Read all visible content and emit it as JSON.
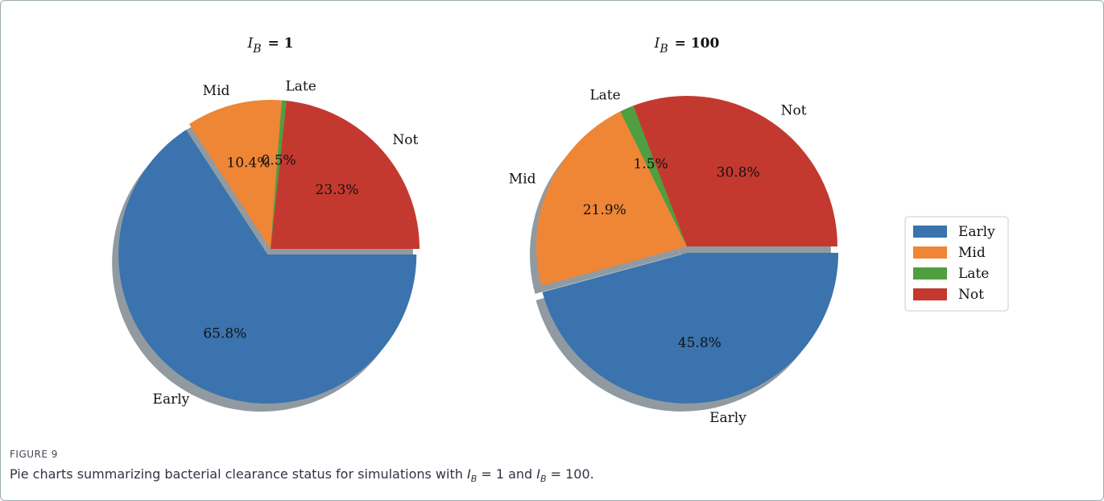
{
  "chart_data": [
    {
      "type": "pie",
      "title": [
        "I",
        "B",
        "= 1"
      ],
      "categories": [
        "Early",
        "Mid",
        "Late",
        "Not"
      ],
      "values": [
        65.8,
        10.4,
        0.5,
        23.3
      ],
      "value_labels": [
        "65.8%",
        "10.4%",
        "0.5%",
        "23.3%"
      ],
      "colors": [
        "#3a73ad",
        "#ee8636",
        "#4f9e40",
        "#c4392f"
      ]
    },
    {
      "type": "pie",
      "title": [
        "I",
        "B",
        "= 100"
      ],
      "categories": [
        "Early",
        "Mid",
        "Late",
        "Not"
      ],
      "values": [
        45.8,
        21.9,
        1.5,
        30.8
      ],
      "value_labels": [
        "45.8%",
        "21.9%",
        "1.5%",
        "30.8%"
      ],
      "colors": [
        "#3a73ad",
        "#ee8636",
        "#4f9e40",
        "#c4392f"
      ],
      "legend": "right"
    }
  ],
  "caption": {
    "label": "FIGURE 9",
    "parts": [
      "Pie charts summarizing bacterial clearance status for simulations with ",
      "I",
      "B",
      " = 1 and ",
      "I",
      "B",
      " = 100."
    ]
  }
}
